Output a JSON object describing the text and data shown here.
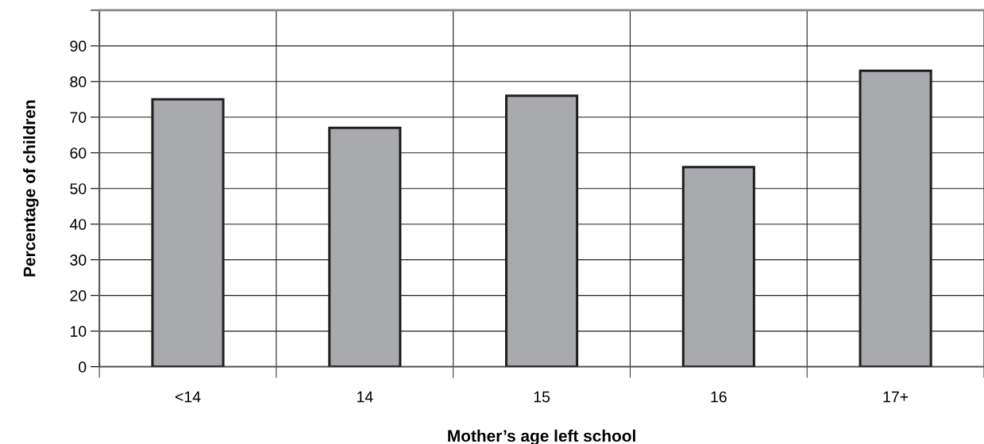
{
  "chart_data": {
    "type": "bar",
    "xlabel": "Mother’s age left school",
    "ylabel": "Percentage of children",
    "categories": [
      "<14",
      "14",
      "15",
      "16",
      "17+"
    ],
    "values": [
      75,
      67,
      76,
      56,
      83
    ],
    "color": "#a9aaad",
    "ylim": [
      0,
      100
    ],
    "yticks": [
      0,
      10,
      20,
      30,
      40,
      50,
      60,
      70,
      80,
      90,
      {
        "value": 100,
        "label": null
      }
    ],
    "grid": true
  }
}
